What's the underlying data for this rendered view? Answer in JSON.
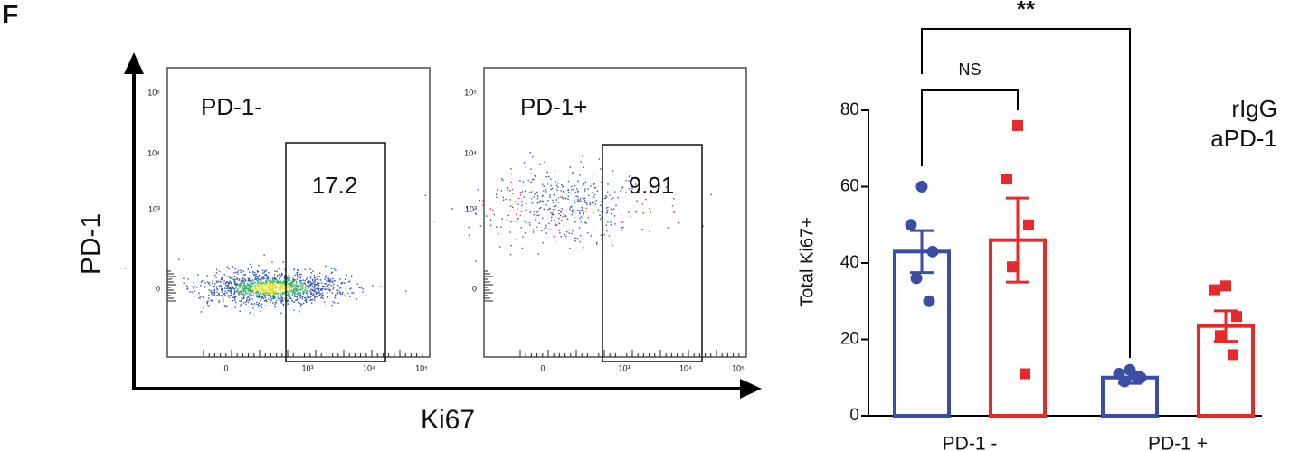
{
  "figure_label": "F",
  "flow": {
    "y_axis_label": "PD-1",
    "x_axis_label": "Ki67",
    "y_tick_labels": [
      "10⁵",
      "10⁴",
      "10³",
      "0"
    ],
    "x_tick_labels": [
      "0",
      "10³",
      "10⁴",
      "10⁵"
    ],
    "panels": [
      {
        "title": "PD-1-",
        "gate_value": 17.2
      },
      {
        "title": "PD-1+",
        "gate_value": 9.91
      }
    ]
  },
  "chart_data": {
    "type": "bar",
    "ylabel": "Total Ki67+",
    "categories": [
      "PD-1 -",
      "PD-1 +"
    ],
    "series": [
      {
        "name": "rIgG",
        "color": "#3b4ea3",
        "values": [
          43,
          10
        ],
        "errors": [
          5.5,
          1.5
        ],
        "points": [
          [
            60,
            50,
            43,
            36,
            30
          ],
          [
            12,
            11,
            10,
            9,
            10
          ]
        ]
      },
      {
        "name": "aPD-1",
        "color": "#e42a2a",
        "values": [
          46,
          23.5
        ],
        "errors": [
          11,
          4
        ],
        "points": [
          [
            76,
            62,
            50,
            39,
            11
          ],
          [
            34,
            33,
            26,
            21,
            16
          ]
        ]
      }
    ],
    "ylim": [
      0,
      80
    ],
    "yticks": [
      0,
      20,
      40,
      60,
      80
    ],
    "annotations": [
      "NS",
      "**"
    ],
    "legend": "upper right"
  }
}
